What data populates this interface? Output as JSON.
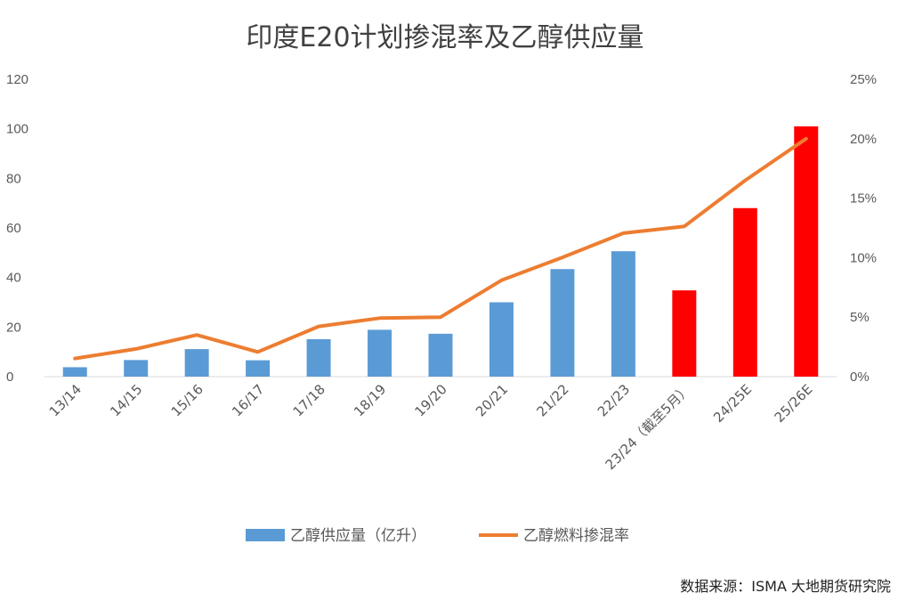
{
  "chart_data": {
    "type": "bar",
    "title": "印度E20计划掺混率及乙醇供应量",
    "categories": [
      "13/14",
      "14/15",
      "15/16",
      "16/17",
      "17/18",
      "18/19",
      "19/20",
      "20/21",
      "21/22",
      "22/23",
      "23/24（截至5月）",
      "24/25E",
      "25/26E"
    ],
    "series": [
      {
        "name": "乙醇供应量（亿升）",
        "kind": "bar",
        "axis": "left",
        "values": [
          3.8,
          6.7,
          11.1,
          6.6,
          15.1,
          18.9,
          17.3,
          30.0,
          43.4,
          50.6,
          34.8,
          68.0,
          101.0
        ],
        "colors": [
          "#5B9BD5",
          "#5B9BD5",
          "#5B9BD5",
          "#5B9BD5",
          "#5B9BD5",
          "#5B9BD5",
          "#5B9BD5",
          "#5B9BD5",
          "#5B9BD5",
          "#5B9BD5",
          "#FF0000",
          "#FF0000",
          "#FF0000"
        ]
      },
      {
        "name": "乙醇燃料掺混率",
        "kind": "line",
        "axis": "right",
        "values": [
          1.53,
          2.33,
          3.5,
          2.07,
          4.22,
          4.92,
          5.0,
          8.1,
          10.02,
          12.06,
          12.63,
          16.5,
          20.0
        ],
        "color": "#ED7D31"
      }
    ],
    "ylim_left": [
      0,
      120
    ],
    "yticks_left": [
      "0",
      "20",
      "40",
      "60",
      "80",
      "100",
      "120"
    ],
    "ylim_right": [
      0,
      25
    ],
    "yticks_right": [
      "0%",
      "5%",
      "10%",
      "15%",
      "20%",
      "25%"
    ],
    "grid": false,
    "legend_position": "bottom"
  },
  "source": "数据来源：ISMA 大地期货研究院"
}
